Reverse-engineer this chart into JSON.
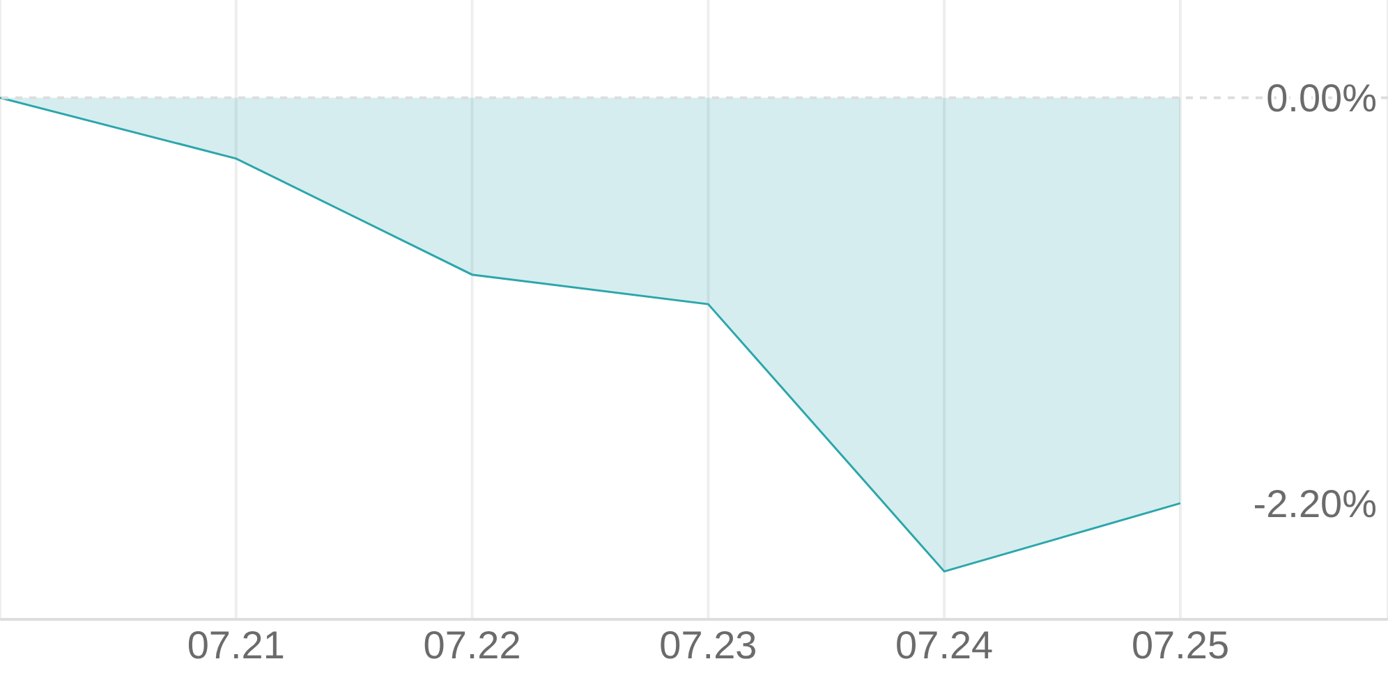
{
  "chart_data": {
    "type": "area",
    "categories": [
      null,
      "07.21",
      "07.22",
      "07.23",
      "07.24",
      "07.25"
    ],
    "series": [
      {
        "color": "#2ba6ab",
        "values": [
          0,
          -0.33,
          -0.96,
          -1.12,
          -2.57,
          -2.2
        ]
      }
    ],
    "ylim": [
      -2.83,
      0.53
    ],
    "yticks": [
      {
        "value": 0,
        "label": "0.00%"
      },
      {
        "value": -2.2,
        "label": "-2.20%"
      }
    ],
    "grid": "x",
    "ref_lines": [
      {
        "axis": "y",
        "value": 0,
        "line_style": "dashed",
        "color": "#dddddd"
      }
    ]
  }
}
